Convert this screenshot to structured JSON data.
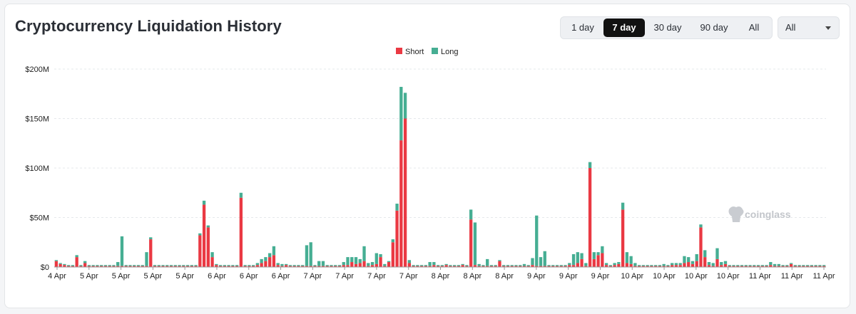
{
  "header": {
    "title": "Cryptocurrency Liquidation History"
  },
  "range_buttons": [
    {
      "label": "1 day",
      "active": false
    },
    {
      "label": "7 day",
      "active": true
    },
    {
      "label": "30 day",
      "active": false
    },
    {
      "label": "90 day",
      "active": false
    },
    {
      "label": "All",
      "active": false
    }
  ],
  "filter": {
    "selected": "All"
  },
  "watermark": {
    "text": "coinglass"
  },
  "colors": {
    "short": "#ea3943",
    "long": "#46ae93",
    "grid": "#e6e8eb",
    "text": "#222222"
  },
  "chart_data": {
    "type": "bar",
    "stacked": true,
    "title": "",
    "xlabel": "",
    "ylabel": "",
    "ylim": [
      0,
      200
    ],
    "y_unit": "M USD",
    "y_ticks": [
      "$0",
      "$50M",
      "$100M",
      "$150M",
      "$200M"
    ],
    "grid": true,
    "legend_position": "top-center",
    "x_tick_labels": [
      "4 Apr",
      "5 Apr",
      "5 Apr",
      "5 Apr",
      "5 Apr",
      "6 Apr",
      "6 Apr",
      "6 Apr",
      "7 Apr",
      "7 Apr",
      "7 Apr",
      "7 Apr",
      "8 Apr",
      "8 Apr",
      "8 Apr",
      "9 Apr",
      "9 Apr",
      "9 Apr",
      "10 Apr",
      "10 Apr",
      "10 Apr",
      "10 Apr",
      "11 Apr",
      "11 Apr",
      "11 Apr"
    ],
    "series": [
      {
        "name": "Short",
        "values": [
          6,
          3,
          2,
          1,
          1,
          10,
          1,
          4,
          1,
          1,
          1,
          1,
          1,
          1,
          1,
          1,
          1,
          1,
          1,
          1,
          1,
          1,
          1,
          28,
          1,
          1,
          1,
          1,
          1,
          1,
          1,
          1,
          1,
          1,
          1,
          32,
          63,
          40,
          10,
          2,
          1,
          1,
          1,
          1,
          1,
          70,
          1,
          1,
          1,
          2,
          4,
          6,
          10,
          12,
          2,
          1,
          2,
          1,
          1,
          1,
          1,
          1,
          1,
          1,
          1,
          1,
          1,
          1,
          1,
          1,
          2,
          2,
          5,
          3,
          4,
          6,
          1,
          2,
          3,
          10,
          1,
          5,
          25,
          57,
          128,
          150,
          4,
          1,
          1,
          1,
          1,
          1,
          2,
          1,
          1,
          2,
          1,
          1,
          1,
          2,
          1,
          48,
          2,
          1,
          1,
          1,
          1,
          1,
          6,
          1,
          1,
          1,
          1,
          1,
          1,
          1,
          2,
          1,
          1,
          1,
          1,
          1,
          1,
          1,
          1,
          2,
          2,
          4,
          8,
          1,
          100,
          8,
          12,
          14,
          2,
          1,
          2,
          3,
          58,
          4,
          3,
          1,
          1,
          1,
          1,
          1,
          1,
          1,
          1,
          1,
          2,
          2,
          2,
          4,
          5,
          3,
          6,
          40,
          10,
          2,
          1,
          8,
          2,
          3,
          1,
          1,
          1,
          1,
          1,
          1,
          1,
          1,
          1,
          1,
          2,
          1,
          1,
          1,
          1,
          3,
          1,
          1,
          1,
          1,
          1,
          1,
          1,
          1
        ],
        "color": "#ea3943"
      },
      {
        "name": "Long",
        "values": [
          1,
          1,
          1,
          1,
          1,
          2,
          1,
          2,
          1,
          1,
          1,
          1,
          1,
          1,
          1,
          4,
          30,
          1,
          1,
          1,
          1,
          1,
          14,
          2,
          1,
          1,
          1,
          1,
          1,
          1,
          1,
          1,
          1,
          1,
          1,
          2,
          4,
          2,
          5,
          1,
          1,
          1,
          1,
          1,
          1,
          5,
          1,
          1,
          1,
          2,
          4,
          4,
          4,
          9,
          2,
          2,
          1,
          1,
          1,
          1,
          1,
          21,
          24,
          1,
          5,
          5,
          1,
          1,
          1,
          1,
          3,
          8,
          5,
          7,
          4,
          15,
          3,
          3,
          11,
          3,
          2,
          1,
          3,
          7,
          54,
          26,
          3,
          1,
          1,
          1,
          1,
          4,
          3,
          1,
          1,
          1,
          1,
          1,
          1,
          1,
          1,
          10,
          43,
          2,
          1,
          7,
          1,
          1,
          1,
          1,
          1,
          1,
          1,
          1,
          2,
          1,
          7,
          51,
          9,
          15,
          1,
          1,
          1,
          1,
          1,
          2,
          11,
          11,
          6,
          3,
          6,
          7,
          3,
          7,
          2,
          1,
          2,
          2,
          7,
          11,
          8,
          3,
          1,
          1,
          1,
          1,
          1,
          1,
          2,
          1,
          2,
          2,
          2,
          7,
          5,
          3,
          7,
          3,
          7,
          3,
          3,
          11,
          3,
          3,
          1,
          1,
          1,
          1,
          1,
          1,
          1,
          1,
          1,
          1,
          3,
          2,
          2,
          1,
          1,
          1,
          1,
          1,
          1,
          1,
          1,
          1,
          1,
          1
        ],
        "color": "#46ae93"
      }
    ]
  }
}
